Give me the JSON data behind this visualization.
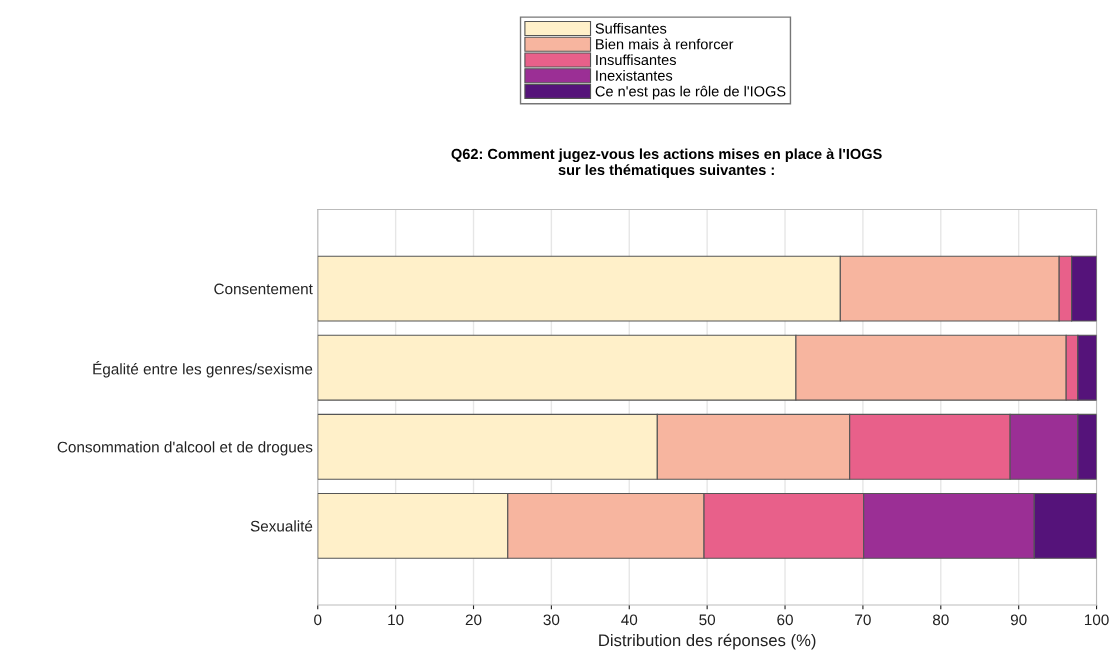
{
  "chart_data": {
    "type": "bar",
    "orientation": "horizontal",
    "stacked": true,
    "title": "Q62: Comment jugez-vous les actions mises en place à l'IOGS\nsur les thématiques suivantes :",
    "xlabel": "Distribution des réponses (%)",
    "categories": [
      "Consentement",
      "Égalité entre les genres/sexisme",
      "Consommation d'alcool et de drogues",
      "Sexualité"
    ],
    "series": [
      {
        "name": "Suffisantes",
        "color": "#fff0c9",
        "values": [
          67.1,
          61.4,
          43.6,
          24.4
        ]
      },
      {
        "name": "Bien mais à renforcer",
        "color": "#f7b59f",
        "values": [
          28.1,
          34.7,
          24.7,
          25.2
        ]
      },
      {
        "name": "Insuffisantes",
        "color": "#e8608a",
        "values": [
          1.6,
          1.5,
          20.6,
          20.5
        ]
      },
      {
        "name": "Inexistantes",
        "color": "#9b2f95",
        "values": [
          0,
          0,
          8.7,
          21.9
        ]
      },
      {
        "name": "Ce n'est pas le rôle de l'IOGS",
        "color": "#55137a",
        "values": [
          3.2,
          2.4,
          2.4,
          8.0
        ]
      }
    ],
    "xlim": [
      0,
      100
    ],
    "xticks": [
      0,
      10,
      20,
      30,
      40,
      50,
      60,
      70,
      80,
      90,
      100
    ],
    "grid": "x",
    "legend": "top"
  }
}
